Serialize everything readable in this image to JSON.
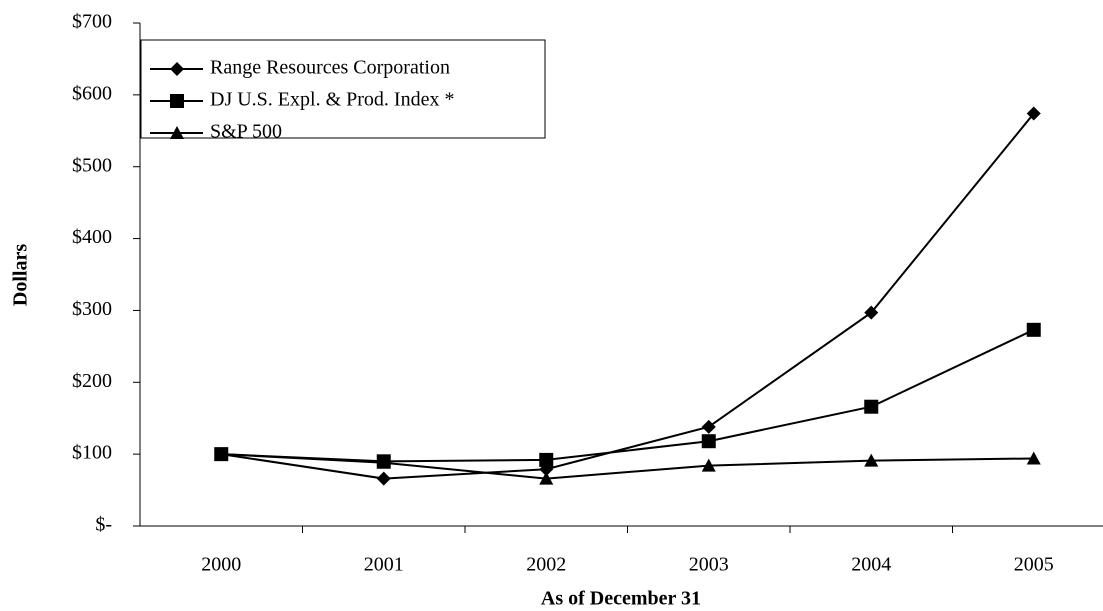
{
  "chart_data": {
    "type": "line",
    "y_label": "Dollars",
    "x_label": "As of December 31",
    "categories": [
      "2000",
      "2001",
      "2002",
      "2003",
      "2004",
      "2005"
    ],
    "series": [
      {
        "name": "Range Resources Corporation",
        "color": "#000000",
        "marker": "diamond",
        "values": [
          100,
          66,
          79,
          138,
          297,
          574
        ]
      },
      {
        "name": "DJ U.S. Expl. & Prod. Index *",
        "color": "#000000",
        "marker": "square",
        "values": [
          100,
          90,
          92,
          118,
          166,
          273
        ]
      },
      {
        "name": "S&P 500",
        "color": "#000000",
        "marker": "triangle",
        "values": [
          100,
          88,
          66,
          84,
          91,
          94
        ]
      }
    ],
    "ylim": [
      0,
      700
    ],
    "yticks": [
      {
        "value": 0,
        "label": "$-"
      },
      {
        "value": 100,
        "label": "$100"
      },
      {
        "value": 200,
        "label": "$200"
      },
      {
        "value": 300,
        "label": "$300"
      },
      {
        "value": 400,
        "label": "$400"
      },
      {
        "value": 500,
        "label": "$500"
      },
      {
        "value": 600,
        "label": "$600"
      },
      {
        "value": 700,
        "label": "$700"
      }
    ],
    "legend": "top-left"
  }
}
